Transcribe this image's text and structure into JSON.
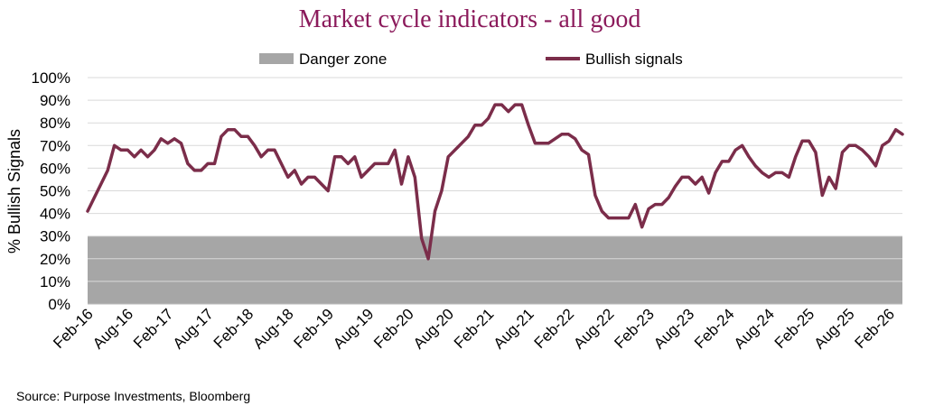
{
  "chart_data": {
    "type": "line",
    "title": "Market cycle indicators - all good",
    "xlabel": "",
    "ylabel": "% Bullish Signals",
    "ylim": [
      0,
      100
    ],
    "y_ticks": [
      "0%",
      "10%",
      "20%",
      "30%",
      "40%",
      "50%",
      "60%",
      "70%",
      "80%",
      "90%",
      "100%"
    ],
    "x_ticks": [
      {
        "month": 0,
        "label": "Feb-16"
      },
      {
        "month": 6,
        "label": "Aug-16"
      },
      {
        "month": 12,
        "label": "Feb-17"
      },
      {
        "month": 18,
        "label": "Aug-17"
      },
      {
        "month": 24,
        "label": "Feb-18"
      },
      {
        "month": 30,
        "label": "Aug-18"
      },
      {
        "month": 36,
        "label": "Feb-19"
      },
      {
        "month": 42,
        "label": "Aug-19"
      },
      {
        "month": 48,
        "label": "Feb-20"
      },
      {
        "month": 54,
        "label": "Aug-20"
      },
      {
        "month": 60,
        "label": "Feb-21"
      },
      {
        "month": 66,
        "label": "Aug-21"
      },
      {
        "month": 72,
        "label": "Feb-22"
      },
      {
        "month": 78,
        "label": "Aug-22"
      },
      {
        "month": 84,
        "label": "Feb-23"
      },
      {
        "month": 90,
        "label": "Aug-23"
      },
      {
        "month": 96,
        "label": "Feb-24"
      },
      {
        "month": 102,
        "label": "Aug-24"
      },
      {
        "month": 108,
        "label": "Feb-25"
      },
      {
        "month": 114,
        "label": "Aug-25"
      },
      {
        "month": 120,
        "label": "Feb-26"
      }
    ],
    "x_start": "Feb-16",
    "x_end": "Jun-26",
    "danger_zone": {
      "name": "Danger zone",
      "from": 0,
      "to": 30,
      "color": "#a6a6a6"
    },
    "series": [
      {
        "name": "Bullish signals",
        "color": "#7b2d4a",
        "values": [
          {
            "x": 0,
            "y": 41
          },
          {
            "x": 1,
            "y": 47
          },
          {
            "x": 2,
            "y": 53
          },
          {
            "x": 3,
            "y": 59
          },
          {
            "x": 4,
            "y": 70
          },
          {
            "x": 5,
            "y": 68
          },
          {
            "x": 6,
            "y": 68
          },
          {
            "x": 7,
            "y": 65
          },
          {
            "x": 8,
            "y": 68
          },
          {
            "x": 9,
            "y": 65
          },
          {
            "x": 10,
            "y": 68
          },
          {
            "x": 11,
            "y": 73
          },
          {
            "x": 12,
            "y": 71
          },
          {
            "x": 13,
            "y": 73
          },
          {
            "x": 14,
            "y": 71
          },
          {
            "x": 15,
            "y": 62
          },
          {
            "x": 16,
            "y": 59
          },
          {
            "x": 17,
            "y": 59
          },
          {
            "x": 18,
            "y": 62
          },
          {
            "x": 19,
            "y": 62
          },
          {
            "x": 20,
            "y": 74
          },
          {
            "x": 21,
            "y": 77
          },
          {
            "x": 22,
            "y": 77
          },
          {
            "x": 23,
            "y": 74
          },
          {
            "x": 24,
            "y": 74
          },
          {
            "x": 25,
            "y": 70
          },
          {
            "x": 26,
            "y": 65
          },
          {
            "x": 27,
            "y": 68
          },
          {
            "x": 28,
            "y": 68
          },
          {
            "x": 29,
            "y": 62
          },
          {
            "x": 30,
            "y": 56
          },
          {
            "x": 31,
            "y": 59
          },
          {
            "x": 32,
            "y": 53
          },
          {
            "x": 33,
            "y": 56
          },
          {
            "x": 34,
            "y": 56
          },
          {
            "x": 35,
            "y": 53
          },
          {
            "x": 36,
            "y": 50
          },
          {
            "x": 37,
            "y": 65
          },
          {
            "x": 38,
            "y": 65
          },
          {
            "x": 39,
            "y": 62
          },
          {
            "x": 40,
            "y": 65
          },
          {
            "x": 41,
            "y": 56
          },
          {
            "x": 42,
            "y": 59
          },
          {
            "x": 43,
            "y": 62
          },
          {
            "x": 44,
            "y": 62
          },
          {
            "x": 45,
            "y": 62
          },
          {
            "x": 46,
            "y": 68
          },
          {
            "x": 47,
            "y": 53
          },
          {
            "x": 48,
            "y": 65
          },
          {
            "x": 49,
            "y": 56
          },
          {
            "x": 50,
            "y": 29
          },
          {
            "x": 51,
            "y": 20
          },
          {
            "x": 52,
            "y": 41
          },
          {
            "x": 53,
            "y": 50
          },
          {
            "x": 54,
            "y": 65
          },
          {
            "x": 55,
            "y": 68
          },
          {
            "x": 56,
            "y": 71
          },
          {
            "x": 57,
            "y": 74
          },
          {
            "x": 58,
            "y": 79
          },
          {
            "x": 59,
            "y": 79
          },
          {
            "x": 60,
            "y": 82
          },
          {
            "x": 61,
            "y": 88
          },
          {
            "x": 62,
            "y": 88
          },
          {
            "x": 63,
            "y": 85
          },
          {
            "x": 64,
            "y": 88
          },
          {
            "x": 65,
            "y": 88
          },
          {
            "x": 66,
            "y": 79
          },
          {
            "x": 67,
            "y": 71
          },
          {
            "x": 68,
            "y": 71
          },
          {
            "x": 69,
            "y": 71
          },
          {
            "x": 70,
            "y": 73
          },
          {
            "x": 71,
            "y": 75
          },
          {
            "x": 72,
            "y": 75
          },
          {
            "x": 73,
            "y": 73
          },
          {
            "x": 74,
            "y": 68
          },
          {
            "x": 75,
            "y": 66
          },
          {
            "x": 76,
            "y": 48
          },
          {
            "x": 77,
            "y": 41
          },
          {
            "x": 78,
            "y": 38
          },
          {
            "x": 79,
            "y": 38
          },
          {
            "x": 80,
            "y": 38
          },
          {
            "x": 81,
            "y": 38
          },
          {
            "x": 82,
            "y": 44
          },
          {
            "x": 83,
            "y": 34
          },
          {
            "x": 84,
            "y": 42
          },
          {
            "x": 85,
            "y": 44
          },
          {
            "x": 86,
            "y": 44
          },
          {
            "x": 87,
            "y": 47
          },
          {
            "x": 88,
            "y": 52
          },
          {
            "x": 89,
            "y": 56
          },
          {
            "x": 90,
            "y": 56
          },
          {
            "x": 91,
            "y": 53
          },
          {
            "x": 92,
            "y": 56
          },
          {
            "x": 93,
            "y": 49
          },
          {
            "x": 94,
            "y": 58
          },
          {
            "x": 95,
            "y": 63
          },
          {
            "x": 96,
            "y": 63
          },
          {
            "x": 97,
            "y": 68
          },
          {
            "x": 98,
            "y": 70
          },
          {
            "x": 99,
            "y": 65
          },
          {
            "x": 100,
            "y": 61
          },
          {
            "x": 101,
            "y": 58
          },
          {
            "x": 102,
            "y": 56
          },
          {
            "x": 103,
            "y": 58
          },
          {
            "x": 104,
            "y": 58
          },
          {
            "x": 105,
            "y": 56
          },
          {
            "x": 106,
            "y": 65
          },
          {
            "x": 107,
            "y": 72
          },
          {
            "x": 108,
            "y": 72
          },
          {
            "x": 109,
            "y": 67
          },
          {
            "x": 110,
            "y": 48
          },
          {
            "x": 111,
            "y": 56
          },
          {
            "x": 112,
            "y": 51
          },
          {
            "x": 113,
            "y": 67
          },
          {
            "x": 114,
            "y": 70
          },
          {
            "x": 115,
            "y": 70
          },
          {
            "x": 116,
            "y": 68
          },
          {
            "x": 117,
            "y": 65
          },
          {
            "x": 118,
            "y": 61
          },
          {
            "x": 119,
            "y": 70
          },
          {
            "x": 120,
            "y": 72
          },
          {
            "x": 121,
            "y": 77
          },
          {
            "x": 122,
            "y": 75
          }
        ]
      }
    ],
    "legend": {
      "position": "top",
      "entries": [
        "Danger zone",
        "Bullish signals"
      ]
    },
    "grid": {
      "horizontal": true,
      "vertical": false
    },
    "source": "Source: Purpose Investments,  Bloomberg",
    "colors": {
      "title": "#8b1a5b",
      "line": "#7b2d4a",
      "danger": "#a6a6a6",
      "grid": "#d9d9d9"
    }
  }
}
